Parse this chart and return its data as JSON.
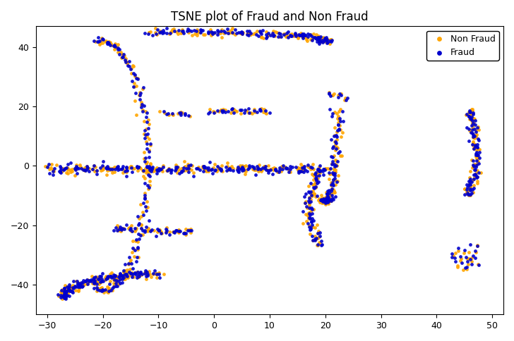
{
  "title": "TSNE plot of Fraud and Non Fraud",
  "xlim": [
    -32,
    52
  ],
  "ylim": [
    -50,
    47
  ],
  "background_color": "#ffffff",
  "fraud_color": "#0000CD",
  "non_fraud_color": "#FFA500",
  "marker_size": 12,
  "alpha": 0.9,
  "legend_labels": [
    "Non Fraud",
    "Fraud"
  ],
  "seed": 42,
  "noise": 0.5
}
